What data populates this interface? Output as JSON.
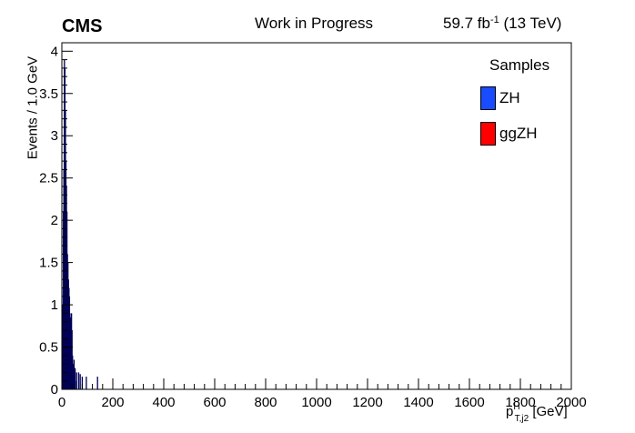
{
  "header": {
    "experiment": "CMS",
    "status": "Work in Progress",
    "lumi_value": "59.7 fb",
    "lumi_exp": "-1",
    "energy": "(13 TeV)"
  },
  "chart_data": {
    "type": "bar",
    "xlabel_main": "p",
    "xlabel_sup": "H",
    "xlabel_sub": "T,j2",
    "xlabel_unit": "[GeV]",
    "ylabel": "Events / 1.0 GeV",
    "xlim": [
      0,
      2000
    ],
    "ylim": [
      0,
      4.1
    ],
    "x_ticks": [
      "0",
      "200",
      "400",
      "600",
      "800",
      "1000",
      "1200",
      "1400",
      "1600",
      "1800",
      "2000"
    ],
    "y_ticks": [
      "0",
      "0.5",
      "1",
      "1.5",
      "2",
      "2.5",
      "3",
      "3.5",
      "4"
    ],
    "legend_title": "Samples",
    "legend_position": "top-right",
    "series": [
      {
        "name": "ZH",
        "color": "#1a4cff",
        "bins": [
          [
            1,
            0.3
          ],
          [
            2,
            0.6
          ],
          [
            3,
            0.9
          ],
          [
            4,
            1.2
          ],
          [
            5,
            1.6
          ],
          [
            6,
            2.0
          ],
          [
            7,
            2.4
          ],
          [
            8,
            3.0
          ],
          [
            9,
            3.3
          ],
          [
            10,
            3.6
          ],
          [
            11,
            3.9
          ],
          [
            12,
            3.6
          ],
          [
            13,
            3.1
          ],
          [
            14,
            2.6
          ],
          [
            15,
            2.2
          ],
          [
            16,
            1.8
          ],
          [
            17,
            1.6
          ],
          [
            18,
            1.4
          ],
          [
            19,
            1.3
          ],
          [
            20,
            1.2
          ],
          [
            21,
            1.15
          ],
          [
            22,
            1.1
          ],
          [
            23,
            1.0
          ],
          [
            24,
            0.95
          ],
          [
            25,
            0.9
          ],
          [
            26,
            0.9
          ],
          [
            27,
            0.85
          ],
          [
            28,
            0.8
          ],
          [
            29,
            0.8
          ],
          [
            30,
            0.75
          ],
          [
            31,
            0.7
          ],
          [
            32,
            0.65
          ],
          [
            33,
            0.6
          ],
          [
            34,
            0.55
          ],
          [
            35,
            0.5
          ],
          [
            36,
            0.45
          ],
          [
            37,
            0.4
          ],
          [
            38,
            0.35
          ],
          [
            39,
            0.3
          ],
          [
            40,
            0.25
          ],
          [
            42,
            0.2
          ],
          [
            45,
            0.18
          ],
          [
            50,
            0.15
          ],
          [
            55,
            0.1
          ]
        ]
      },
      {
        "name": "ggZH",
        "color": "#ff0000",
        "bins": []
      }
    ],
    "error_bars": [
      [
        2,
        0.5
      ],
      [
        4,
        1.0
      ],
      [
        6,
        2.1
      ],
      [
        8,
        2.6
      ],
      [
        10,
        3.9
      ],
      [
        12,
        3.8
      ],
      [
        14,
        3.3
      ],
      [
        16,
        2.7
      ],
      [
        18,
        2.4
      ],
      [
        20,
        2.1
      ],
      [
        22,
        1.6
      ],
      [
        24,
        1.5
      ],
      [
        26,
        1.3
      ],
      [
        28,
        1.2
      ],
      [
        30,
        1.1
      ],
      [
        32,
        0.9
      ],
      [
        34,
        0.85
      ],
      [
        36,
        0.8
      ],
      [
        38,
        0.9
      ],
      [
        40,
        0.7
      ],
      [
        42,
        0.4
      ],
      [
        45,
        0.3
      ],
      [
        48,
        0.35
      ],
      [
        52,
        0.25
      ],
      [
        58,
        0.2
      ],
      [
        66,
        0.2
      ],
      [
        72,
        0.18
      ],
      [
        80,
        0.15
      ],
      [
        96,
        0.15
      ],
      [
        140,
        0.15
      ]
    ]
  }
}
